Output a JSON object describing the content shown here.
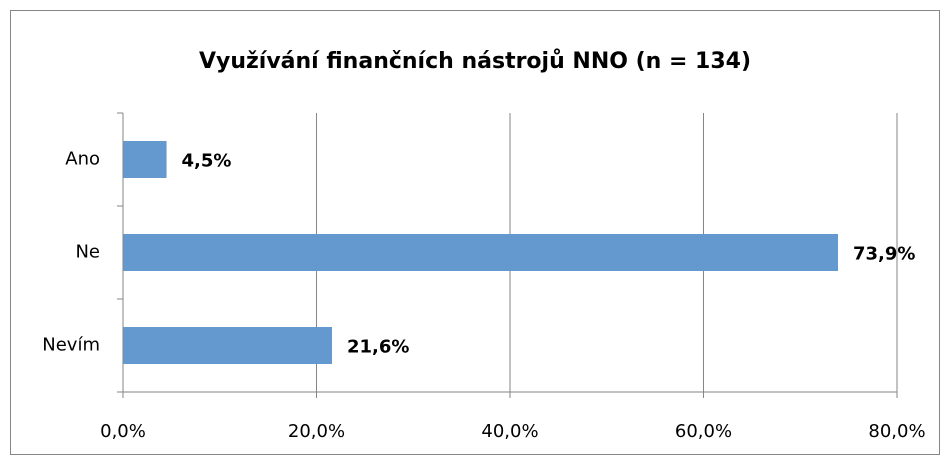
{
  "chart_data": {
    "type": "barh",
    "title": "Využívání finančních nástrojů NNO (n = 134)",
    "categories": [
      "Ano",
      "Ne",
      "Nevím"
    ],
    "values": [
      4.5,
      73.9,
      21.6
    ],
    "value_labels": [
      "4,5%",
      "73,9%",
      "21,6%"
    ],
    "color": "#6399cf",
    "xlim": [
      0,
      80
    ],
    "xticks": [
      {
        "value": 0,
        "label": "0,0%"
      },
      {
        "value": 20,
        "label": "20,0%"
      },
      {
        "value": 40,
        "label": "40,0%"
      },
      {
        "value": 60,
        "label": "60,0%"
      },
      {
        "value": 80,
        "label": "80,0%"
      }
    ],
    "grid": true
  }
}
